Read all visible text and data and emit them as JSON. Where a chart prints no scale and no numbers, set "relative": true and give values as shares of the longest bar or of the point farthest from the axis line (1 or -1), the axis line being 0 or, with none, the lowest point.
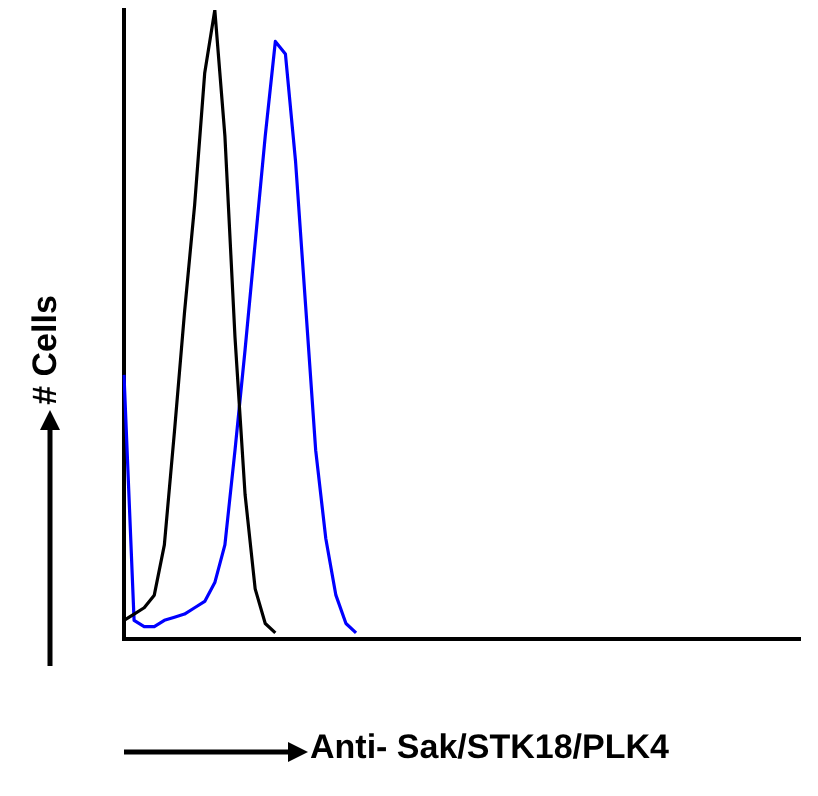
{
  "chart_data": {
    "type": "line",
    "relative": true,
    "xlabel": "Anti- Sak/STK18/PLK4",
    "ylabel": "# Cells",
    "grid": false,
    "legend": false,
    "marker": "none",
    "line_style": "solid",
    "categories": [
      null,
      null,
      null,
      null,
      null,
      null,
      null,
      null,
      null,
      null,
      null,
      null,
      null,
      null,
      null,
      null,
      null,
      null,
      null,
      null,
      null,
      null,
      null,
      null,
      null,
      null,
      null,
      null,
      null,
      null,
      null,
      null,
      null,
      null,
      null,
      null,
      null,
      null,
      null,
      null,
      null,
      null,
      null,
      null,
      null,
      null,
      null,
      null,
      null,
      null,
      null,
      null,
      null,
      null,
      null,
      null,
      null,
      null,
      null,
      null,
      null,
      null,
      null,
      null,
      null,
      null,
      null,
      null
    ],
    "series": [
      {
        "color": "#000000",
        "values": [
          0.03,
          0.04,
          0.05,
          0.07,
          0.15,
          0.33,
          0.52,
          0.69,
          0.9,
          1,
          0.8,
          0.48,
          0.23,
          0.08,
          0.025,
          0.01,
          null,
          null,
          null,
          null,
          null,
          null,
          null,
          null,
          null,
          null,
          null,
          null,
          null,
          null,
          null,
          null,
          null,
          null,
          null,
          null,
          null,
          null,
          null,
          null,
          null,
          null,
          null,
          null,
          null,
          null,
          null,
          null,
          null,
          null,
          null,
          null,
          null,
          null,
          null,
          null,
          null,
          null,
          null,
          null,
          null,
          null,
          null,
          null,
          null,
          null,
          null,
          null
        ]
      },
      {
        "color": "#0000ff",
        "values": [
          0.42,
          0.03,
          0.02,
          0.02,
          0.03,
          0.035,
          0.04,
          0.05,
          0.06,
          0.09,
          0.15,
          0.3,
          0.46,
          0.63,
          0.8,
          0.95,
          0.93,
          0.76,
          0.53,
          0.3,
          0.16,
          0.07,
          0.025,
          0.01,
          null,
          null,
          null,
          null,
          null,
          null,
          null,
          null,
          null,
          null,
          null,
          null,
          null,
          null,
          null,
          null,
          null,
          null,
          null,
          null,
          null,
          null,
          null,
          null,
          null,
          null,
          null,
          null,
          null,
          null,
          null,
          null,
          null,
          null,
          null,
          null,
          null,
          null,
          null,
          null,
          null,
          null,
          null,
          null
        ]
      }
    ]
  }
}
